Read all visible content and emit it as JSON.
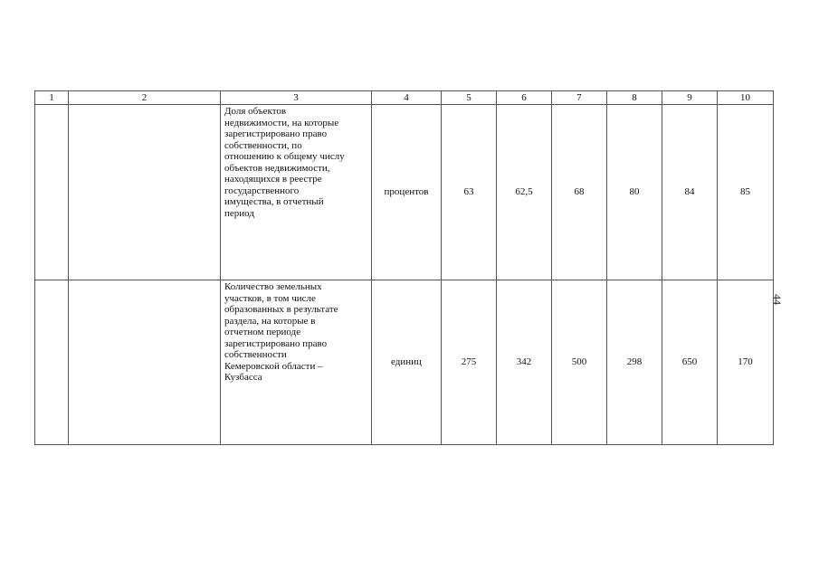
{
  "table": {
    "headers": [
      "1",
      "2",
      "3",
      "4",
      "5",
      "6",
      "7",
      "8",
      "9",
      "10"
    ],
    "rows": [
      {
        "col1": "",
        "col2": "",
        "indicator": "Доля объектов\nнедвижимости, на которые\nзарегистрировано право\nсобственности, по\nотношению к общему числу\nобъектов недвижимости,\nнаходящихся в реестре\nгосударственного\nимущества,  в отчетный\nпериод",
        "unit": "процентов",
        "values": [
          "63",
          "62,5",
          "68",
          "80",
          "84",
          "85"
        ]
      },
      {
        "col1": "",
        "col2": "",
        "indicator": "Количество земельных\nучастков, в том числе\nобразованных в результате\nраздела, на которые в\nотчетном периоде\nзарегистрировано право\nсобственности\nКемеровской области –\nКузбасса",
        "unit": "единиц",
        "values": [
          "275",
          "342",
          "500",
          "298",
          "650",
          "170"
        ]
      }
    ]
  },
  "page_number": "44"
}
